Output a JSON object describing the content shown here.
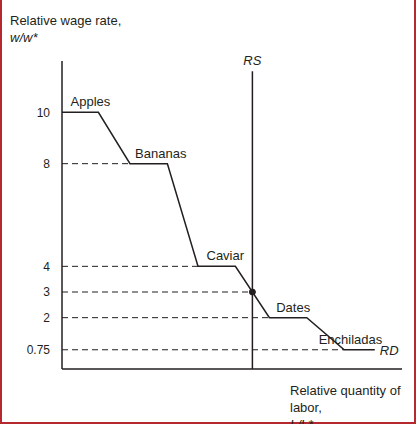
{
  "chart_data": {
    "type": "line",
    "y_label": "Relative wage rate, w/w*",
    "x_label": "Relative quantity of labor, L/L*",
    "xlim": [
      0,
      10
    ],
    "ylim": [
      0,
      12
    ],
    "yticks": [
      0.75,
      2,
      3,
      4,
      8,
      10
    ],
    "tick_labels": "y",
    "series": [
      {
        "name": "RD",
        "color": "#231f20",
        "x": [
          0,
          1.07,
          2.0,
          3.1,
          4.0,
          5.1,
          6.1,
          7.2,
          8.3,
          9.2
        ],
        "values": [
          10,
          10,
          8,
          8,
          4,
          4,
          2,
          2,
          0.75,
          0.75
        ]
      },
      {
        "name": "RS",
        "color": "#231f20",
        "x": [
          5.6,
          5.6
        ],
        "values": [
          0,
          11.6
        ]
      }
    ],
    "annotations": [
      {
        "text": "Apples",
        "x": 0.25,
        "y": 10
      },
      {
        "text": "Bananas",
        "x": 2.15,
        "y": 8
      },
      {
        "text": "Caviar",
        "x": 4.25,
        "y": 4
      },
      {
        "text": "Dates",
        "x": 6.3,
        "y": 2
      },
      {
        "text": "Enchiladas",
        "x": 7.55,
        "y": 0.75
      }
    ],
    "equilibrium": {
      "x": 5.6,
      "y": 3
    }
  }
}
